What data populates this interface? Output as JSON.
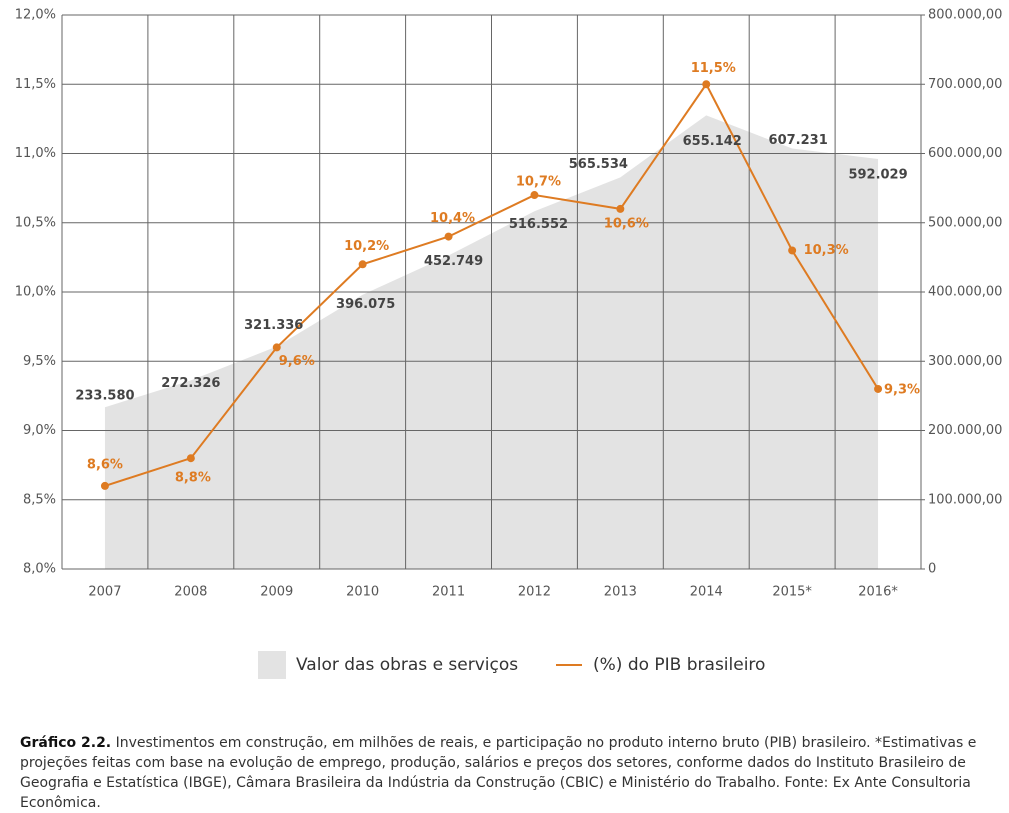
{
  "chart_data": {
    "type": "area-line",
    "categories": [
      "2007",
      "2008",
      "2009",
      "2010",
      "2011",
      "2012",
      "2013",
      "2014",
      "2015*",
      "2016*"
    ],
    "series": [
      {
        "name": "Valor das obras e serviços",
        "type": "area",
        "axis": "y2",
        "color": "#e3e3e3",
        "values": [
          233580,
          272326,
          321336,
          396075,
          452749,
          516552,
          565534,
          655142,
          607231,
          592029
        ],
        "value_labels": [
          "233.580",
          "272.326",
          "321.336",
          "396.075",
          "452.749",
          "516.552",
          "565.534",
          "655.142",
          "607.231",
          "592.029"
        ]
      },
      {
        "name": "(%) do PIB brasileiro",
        "type": "line",
        "axis": "y",
        "color": "#de7b22",
        "values": [
          8.6,
          8.8,
          9.6,
          10.2,
          10.4,
          10.7,
          10.6,
          11.5,
          10.3,
          9.3
        ],
        "value_labels": [
          "8,6%",
          "8,8%",
          "9,6%",
          "10,2%",
          "10,4%",
          "10,7%",
          "10,6%",
          "11,5%",
          "10,3%",
          "9,3%"
        ]
      }
    ],
    "ylim": [
      8.0,
      12.0
    ],
    "yticks": [
      {
        "value": 8.0,
        "label": "8,0%"
      },
      {
        "value": 8.5,
        "label": "8,5%"
      },
      {
        "value": 9.0,
        "label": "9,0%"
      },
      {
        "value": 9.5,
        "label": "9,5%"
      },
      {
        "value": 10.0,
        "label": "10,0%"
      },
      {
        "value": 10.5,
        "label": "10,5%"
      },
      {
        "value": 11.0,
        "label": "11,0%"
      },
      {
        "value": 11.5,
        "label": "11,5%"
      },
      {
        "value": 12.0,
        "label": "12,0%"
      }
    ],
    "y2lim": [
      0,
      800000
    ],
    "y2ticks": [
      0,
      {
        "value": 100000,
        "label": "100.000,00"
      },
      {
        "value": 200000,
        "label": "200.000,00"
      },
      {
        "value": 300000,
        "label": "300.000,00"
      },
      {
        "value": 400000,
        "label": "400.000,00"
      },
      {
        "value": 500000,
        "label": "500.000,00"
      },
      {
        "value": 600000,
        "label": "600.000,00"
      },
      {
        "value": 700000,
        "label": "700.000,00"
      },
      {
        "value": 800000,
        "label": "800.000,00"
      }
    ],
    "grid": true,
    "legend": "bottom"
  },
  "caption": {
    "label": "Gráfico 2.2.",
    "text": "Investimentos em construção, em milhões de reais, e participação no produto interno bruto (PIB) brasileiro. *Estimativas e projeções feitas com base na evolução de emprego, produção, salários e preços dos setores, conforme dados do Instituto Brasileiro de Geografia e Estatística (IBGE), Câmara Brasileira da Indústria da Construção (CBIC) e Ministério do Trabalho. Fonte: Ex Ante Consultoria Econômica."
  }
}
